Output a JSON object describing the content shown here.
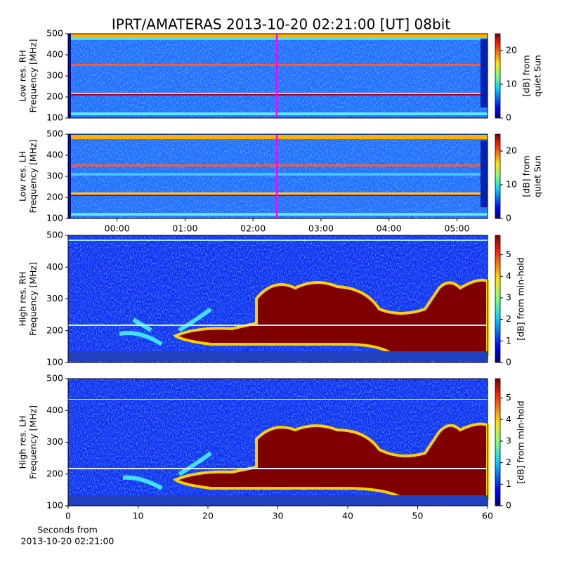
{
  "title": "IPRT/AMATERAS 2013-10-20 02:21:00 [UT]   08bit",
  "chart_data": [
    {
      "type": "spectrogram",
      "ylabel": [
        "Low res. RH",
        "Frequency [MHz]"
      ],
      "xlim": [
        -0.72,
        5.45
      ],
      "ylim": [
        100,
        500
      ],
      "yticks": [
        100,
        200,
        300,
        400,
        500
      ],
      "marker_x": 2.35,
      "marker_color": "#ff00ff",
      "colorbar": {
        "label": [
          "[dB] from",
          "quiet Sun"
        ],
        "clim": [
          0,
          25
        ],
        "ticks": [
          0,
          10,
          20
        ]
      }
    },
    {
      "type": "spectrogram",
      "ylabel": [
        "Low res. LH",
        "Frequency [MHz]"
      ],
      "xlim": [
        -0.72,
        5.45
      ],
      "ylim": [
        100,
        500
      ],
      "yticks": [
        100,
        200,
        300,
        400,
        500
      ],
      "xticks": [
        {
          "value": 0,
          "label": "00:00"
        },
        {
          "value": 1,
          "label": "01:00"
        },
        {
          "value": 2,
          "label": "02:00"
        },
        {
          "value": 3,
          "label": "03:00"
        },
        {
          "value": 4,
          "label": "04:00"
        },
        {
          "value": 5,
          "label": "05:00"
        }
      ],
      "marker_x": 2.35,
      "marker_color": "#ff00ff",
      "colorbar": {
        "label": [
          "[dB] from",
          "quiet Sun"
        ],
        "clim": [
          0,
          25
        ],
        "ticks": [
          0,
          10,
          20
        ]
      }
    },
    {
      "type": "spectrogram",
      "ylabel": [
        "High res. RH",
        "Frequency [MHz]"
      ],
      "xlim": [
        0,
        60
      ],
      "ylim": [
        100,
        500
      ],
      "yticks": [
        100,
        200,
        300,
        400,
        500
      ],
      "colorbar": {
        "label": [
          "[dB] from min-hold"
        ],
        "clim": [
          0,
          5.9
        ],
        "ticks": [
          0,
          1,
          2,
          3,
          4,
          5
        ]
      }
    },
    {
      "type": "spectrogram",
      "ylabel": [
        "High res. LH",
        "Frequency [MHz]"
      ],
      "xlim": [
        0,
        60
      ],
      "ylim": [
        100,
        500
      ],
      "yticks": [
        100,
        200,
        300,
        400,
        500
      ],
      "xticks": [
        0,
        10,
        20,
        30,
        40,
        50,
        60
      ],
      "xlabel": [
        "Seconds from",
        "2013-10-20 02:21:00"
      ],
      "colorbar": {
        "label": [
          "[dB] from min-hold"
        ],
        "clim": [
          0,
          5.9
        ],
        "ticks": [
          0,
          1,
          2,
          3,
          4,
          5
        ]
      }
    }
  ]
}
